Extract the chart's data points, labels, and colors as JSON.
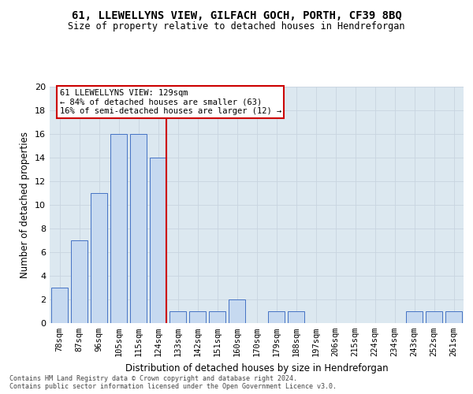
{
  "title": "61, LLEWELLYNS VIEW, GILFACH GOCH, PORTH, CF39 8BQ",
  "subtitle": "Size of property relative to detached houses in Hendreforgan",
  "xlabel": "Distribution of detached houses by size in Hendreforgan",
  "ylabel": "Number of detached properties",
  "categories": [
    "78sqm",
    "87sqm",
    "96sqm",
    "105sqm",
    "115sqm",
    "124sqm",
    "133sqm",
    "142sqm",
    "151sqm",
    "160sqm",
    "170sqm",
    "179sqm",
    "188sqm",
    "197sqm",
    "206sqm",
    "215sqm",
    "224sqm",
    "234sqm",
    "243sqm",
    "252sqm",
    "261sqm"
  ],
  "values": [
    3,
    7,
    11,
    16,
    16,
    14,
    1,
    1,
    1,
    2,
    0,
    1,
    1,
    0,
    0,
    0,
    0,
    0,
    1,
    1,
    1
  ],
  "bar_color": "#c6d9f0",
  "bar_edge_color": "#4472c4",
  "vline_index": 5,
  "annotation_line1": "61 LLEWELLYNS VIEW: 129sqm",
  "annotation_line2": "← 84% of detached houses are smaller (63)",
  "annotation_line3": "16% of semi-detached houses are larger (12) →",
  "vline_color": "#cc0000",
  "annotation_box_facecolor": "#ffffff",
  "annotation_box_edgecolor": "#cc0000",
  "ylim": [
    0,
    20
  ],
  "yticks": [
    0,
    2,
    4,
    6,
    8,
    10,
    12,
    14,
    16,
    18,
    20
  ],
  "grid_color": "#c8d4e0",
  "background_color": "#dce8f0",
  "footer_line1": "Contains HM Land Registry data © Crown copyright and database right 2024.",
  "footer_line2": "Contains public sector information licensed under the Open Government Licence v3.0."
}
